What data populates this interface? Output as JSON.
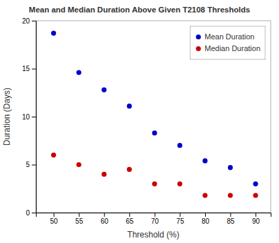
{
  "chart_data": {
    "type": "scatter",
    "title": "Mean and Median Duration Above Given T2108 Thresholds",
    "xlabel": "Threshold (%)",
    "ylabel": "Duration (Days)",
    "x": [
      50,
      55,
      60,
      65,
      70,
      75,
      80,
      85,
      90
    ],
    "series": [
      {
        "name": "Mean Duration",
        "color": "#0000CC",
        "values": [
          18.7,
          14.6,
          12.8,
          11.1,
          8.3,
          7.0,
          5.4,
          4.7,
          3.0
        ]
      },
      {
        "name": "Median Duration",
        "color": "#CC0000",
        "values": [
          6.0,
          5.0,
          4.0,
          4.5,
          3.0,
          3.0,
          1.8,
          1.8,
          1.8
        ]
      }
    ],
    "xlim": [
      46.5,
      93
    ],
    "ylim": [
      0,
      20
    ],
    "xticks": [
      50,
      55,
      60,
      65,
      70,
      75,
      80,
      85,
      90
    ],
    "yticks": [
      0,
      5,
      10,
      15,
      20
    ],
    "grid": false,
    "legend": "upper right"
  }
}
